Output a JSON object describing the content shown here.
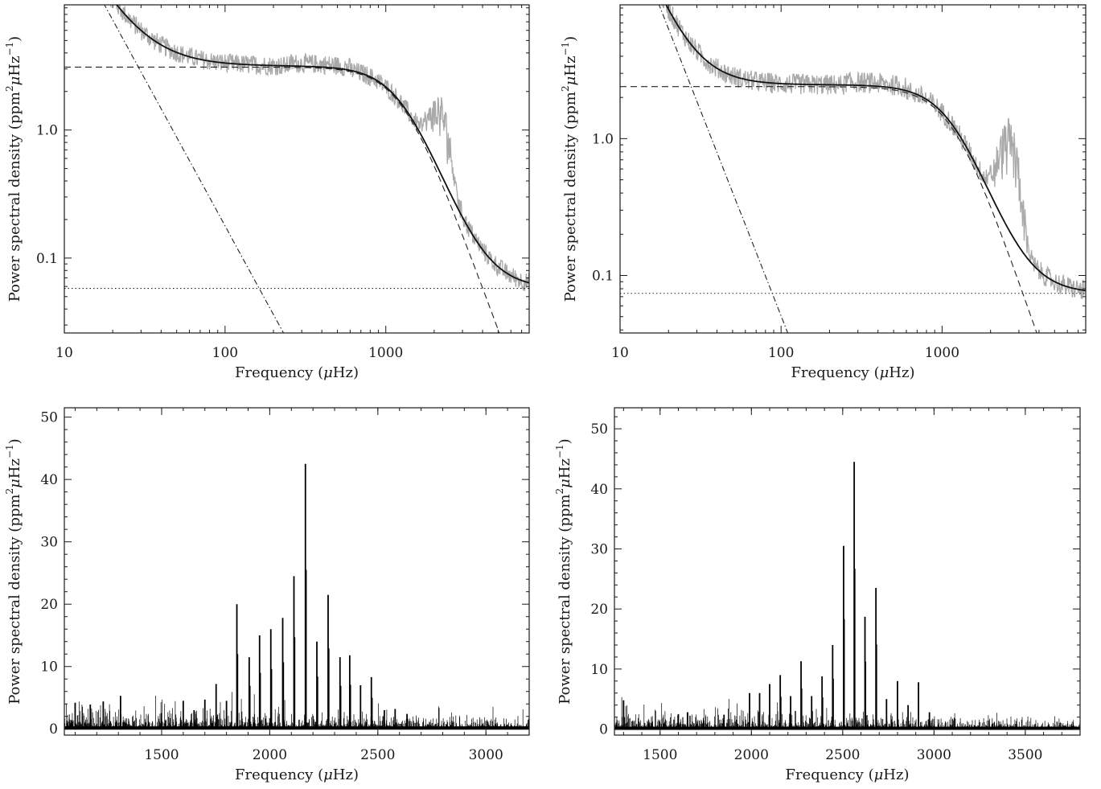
{
  "chart_data": [
    {
      "type": "line",
      "position": "top-left",
      "xscale": "log",
      "yscale": "log",
      "xlim": [
        10,
        7800
      ],
      "ylim": [
        0.026,
        9.5
      ],
      "xlabel_text": "Frequency (",
      "xlabel_sym": "μ",
      "xlabel_unit": "Hz)",
      "ylabel_text": "Power spectral density (ppm",
      "ylabel_mid": "μ",
      "ylabel_end": "Hz",
      "ylabel_sup1": "2",
      "ylabel_sup2": "−1",
      "ylabel_close": ")",
      "xticks": [
        {
          "value": 10,
          "label": "10"
        },
        {
          "value": 100,
          "label": "100"
        },
        {
          "value": 1000,
          "label": "1000"
        }
      ],
      "yticks": [
        {
          "value": 0.1,
          "label": "0.1"
        },
        {
          "value": 1.0,
          "label": "1.0"
        }
      ],
      "model": {
        "granulation_level": 3.1,
        "granulation_tau_hz": 1250,
        "granulation_exp": 3.4,
        "activity_level": 14,
        "activity_ref": 15,
        "activity_slope": 2.3,
        "white_noise": 0.058,
        "hump_center": 2150,
        "hump_width": 280,
        "hump_height": 0.9
      },
      "colors": {
        "data": "#a9a9a9",
        "fit": "#111111"
      }
    },
    {
      "type": "line",
      "position": "top-right",
      "xscale": "log",
      "yscale": "log",
      "xlim": [
        10,
        7800
      ],
      "ylim": [
        0.038,
        9.5
      ],
      "xlabel_text": "Frequency (",
      "xlabel_sym": "μ",
      "xlabel_unit": "Hz)",
      "ylabel_text": "Power spectral density (ppm",
      "ylabel_mid": "μ",
      "ylabel_end": "Hz",
      "ylabel_sup1": "2",
      "ylabel_sup2": "−1",
      "ylabel_close": ")",
      "xticks": [
        {
          "value": 10,
          "label": "10"
        },
        {
          "value": 100,
          "label": "100"
        },
        {
          "value": 1000,
          "label": "1000"
        }
      ],
      "yticks": [
        {
          "value": 0.1,
          "label": "0.1"
        },
        {
          "value": 1.0,
          "label": "1.0"
        }
      ],
      "model": {
        "granulation_level": 2.4,
        "granulation_tau_hz": 1150,
        "granulation_exp": 3.4,
        "activity_level": 15,
        "activity_ref": 15,
        "activity_slope": 3.0,
        "white_noise": 0.074,
        "hump_center": 2600,
        "hump_width": 330,
        "hump_height": 0.75
      },
      "colors": {
        "data": "#a9a9a9",
        "fit": "#111111"
      }
    },
    {
      "type": "bar",
      "position": "bottom-left",
      "xlim": [
        1050,
        3200
      ],
      "ylim": [
        -1,
        51.5
      ],
      "xlabel_text": "Frequency (",
      "xlabel_sym": "μ",
      "xlabel_unit": "Hz)",
      "ylabel_text": "Power spectral density (ppm",
      "ylabel_mid": "μ",
      "ylabel_end": "Hz",
      "ylabel_sup1": "2",
      "ylabel_sup2": "−1",
      "ylabel_close": ")",
      "xticks": [
        {
          "value": 1500,
          "label": "1500"
        },
        {
          "value": 2000,
          "label": "2000"
        },
        {
          "value": 2500,
          "label": "2500"
        },
        {
          "value": 3000,
          "label": "3000"
        }
      ],
      "yticks": [
        {
          "value": 0,
          "label": "0"
        },
        {
          "value": 10,
          "label": "10"
        },
        {
          "value": 20,
          "label": "20"
        },
        {
          "value": 30,
          "label": "30"
        },
        {
          "value": 40,
          "label": "40"
        },
        {
          "value": 50,
          "label": "50"
        }
      ],
      "peaks": [
        [
          1752,
          7.2
        ],
        [
          1800,
          4.5
        ],
        [
          1848,
          20
        ],
        [
          1905,
          11.5
        ],
        [
          1953,
          15
        ],
        [
          2005,
          16
        ],
        [
          2060,
          17.8
        ],
        [
          2112,
          24.5
        ],
        [
          2165,
          42.5
        ],
        [
          2218,
          14
        ],
        [
          2270,
          21.5
        ],
        [
          2325,
          11.5
        ],
        [
          2370,
          11.8
        ],
        [
          2420,
          7
        ],
        [
          2470,
          8.3
        ],
        [
          2530,
          3
        ],
        [
          2580,
          3.2
        ],
        [
          2635,
          2.4
        ],
        [
          1700,
          4.7
        ],
        [
          1650,
          3
        ],
        [
          1600,
          4.5
        ],
        [
          1310,
          5.3
        ],
        [
          1100,
          4.2
        ],
        [
          1170,
          3.9
        ],
        [
          1230,
          4.4
        ]
      ],
      "noise_level": 1.4,
      "colors": {
        "data": "#000000"
      }
    },
    {
      "type": "bar",
      "position": "bottom-right",
      "xlim": [
        1250,
        3800
      ],
      "ylim": [
        -1,
        53.5
      ],
      "xlabel_text": "Frequency (",
      "xlabel_sym": "μ",
      "xlabel_unit": "Hz)",
      "ylabel_text": "Power spectral density (ppm",
      "ylabel_mid": "μ",
      "ylabel_end": "Hz",
      "ylabel_sup1": "2",
      "ylabel_sup2": "−1",
      "ylabel_close": ")",
      "xticks": [
        {
          "value": 1500,
          "label": "1500"
        },
        {
          "value": 2000,
          "label": "2000"
        },
        {
          "value": 2500,
          "label": "2500"
        },
        {
          "value": 3000,
          "label": "3000"
        },
        {
          "value": 3500,
          "label": "3500"
        }
      ],
      "yticks": [
        {
          "value": 0,
          "label": "0"
        },
        {
          "value": 10,
          "label": "10"
        },
        {
          "value": 20,
          "label": "20"
        },
        {
          "value": 30,
          "label": "30"
        },
        {
          "value": 40,
          "label": "40"
        },
        {
          "value": 50,
          "label": "50"
        }
      ],
      "peaks": [
        [
          1990,
          6
        ],
        [
          2045,
          6
        ],
        [
          2100,
          7.5
        ],
        [
          2158,
          9
        ],
        [
          2215,
          5.5
        ],
        [
          2272,
          11.3
        ],
        [
          2330,
          5.5
        ],
        [
          2387,
          8.8
        ],
        [
          2445,
          14
        ],
        [
          2505,
          30.5
        ],
        [
          2563,
          44.5
        ],
        [
          2622,
          18.7
        ],
        [
          2682,
          23.5
        ],
        [
          2740,
          5
        ],
        [
          2800,
          8
        ],
        [
          2858,
          4
        ],
        [
          2915,
          7.8
        ],
        [
          2975,
          2.8
        ],
        [
          1300,
          4.8
        ],
        [
          1600,
          2.5
        ],
        [
          1650,
          2.8
        ],
        [
          1850,
          2.4
        ]
      ],
      "noise_level": 1.2,
      "colors": {
        "data": "#000000"
      }
    }
  ]
}
